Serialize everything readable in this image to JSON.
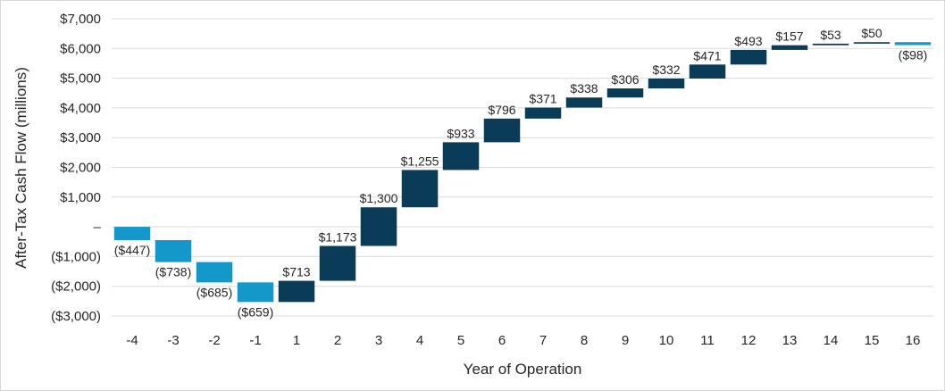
{
  "chart_data": {
    "type": "waterfall",
    "title": "",
    "xlabel": "Year of Operation",
    "ylabel": "After-Tax Cash Flow (millions)",
    "ylim": [
      -3000,
      7000
    ],
    "yticks": [
      7000,
      6000,
      5000,
      4000,
      3000,
      2000,
      1000,
      0,
      -1000,
      -2000,
      -3000
    ],
    "ytick_labels": [
      "$7,000",
      "$6,000",
      "$5,000",
      "$4,000",
      "$3,000",
      "$2,000",
      "$1,000",
      "–",
      "($1,000)",
      "($2,000)",
      "($3,000)"
    ],
    "grid": true,
    "categories": [
      "-4",
      "-3",
      "-2",
      "-1",
      "1",
      "2",
      "3",
      "4",
      "5",
      "6",
      "7",
      "8",
      "9",
      "10",
      "11",
      "12",
      "13",
      "14",
      "15",
      "16"
    ],
    "values": [
      -447,
      -738,
      -685,
      -659,
      713,
      1173,
      1300,
      1255,
      933,
      796,
      371,
      338,
      306,
      332,
      471,
      493,
      157,
      53,
      50,
      -98
    ],
    "labels": [
      "($447)",
      "($738)",
      "($685)",
      "($659)",
      "$713",
      "$1,173",
      "$1,300",
      "$1,255",
      "$933",
      "$796",
      "$371",
      "$338",
      "$306",
      "$332",
      "$471",
      "$493",
      "$157",
      "$53",
      "$50",
      "($98)"
    ],
    "colors": {
      "negative": "#1398c9",
      "positive": "#0b3c57",
      "grid": "#d9d9d9",
      "text": "#262626"
    }
  }
}
